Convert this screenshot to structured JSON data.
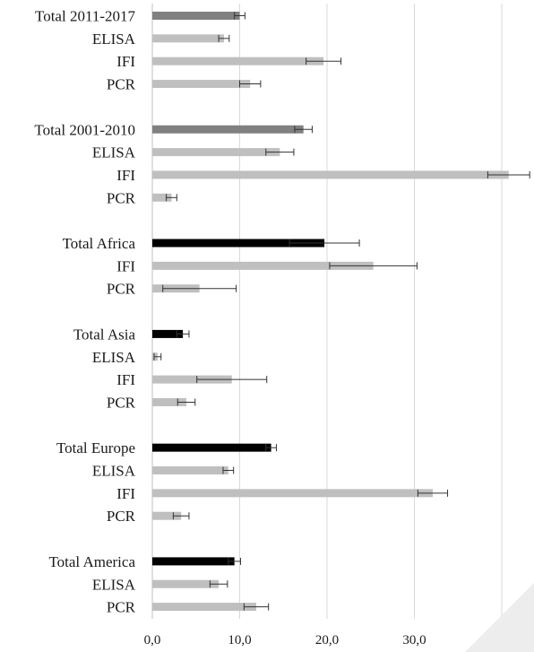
{
  "colors": {
    "period_total": "#808080",
    "region_total": "#000000",
    "method": "#bfbfbf",
    "error_bar": "#333333",
    "grid": "#d9d9d9"
  },
  "chart_data": {
    "type": "bar",
    "orientation": "horizontal",
    "xlim": [
      0,
      44
    ],
    "xticks": [
      "0,0",
      "10,0",
      "20,0",
      "30,0",
      "40,0"
    ],
    "grid": true,
    "legend": "none",
    "groups": [
      {
        "bars": [
          {
            "label": "Total 2011-2017",
            "value": 10.0,
            "error": 0.6,
            "style": "period_total"
          },
          {
            "label": "ELISA",
            "value": 8.2,
            "error": 0.6,
            "style": "method"
          },
          {
            "label": "IFI",
            "value": 19.6,
            "error": 2.0,
            "style": "method"
          },
          {
            "label": "PCR",
            "value": 11.2,
            "error": 1.2,
            "style": "method"
          }
        ]
      },
      {
        "bars": [
          {
            "label": "Total 2001-2010",
            "value": 17.3,
            "error": 1.0,
            "style": "period_total"
          },
          {
            "label": "ELISA",
            "value": 14.6,
            "error": 1.6,
            "style": "method"
          },
          {
            "label": "IFI",
            "value": 40.8,
            "error": 2.4,
            "style": "method"
          },
          {
            "label": "PCR",
            "value": 2.2,
            "error": 0.6,
            "style": "method"
          }
        ]
      },
      {
        "bars": [
          {
            "label": "Total Africa",
            "value": 19.7,
            "error": 4.0,
            "style": "region_total"
          },
          {
            "label": "IFI",
            "value": 25.3,
            "error": 5.0,
            "style": "method"
          },
          {
            "label": "PCR",
            "value": 5.4,
            "error": 4.2,
            "style": "method"
          }
        ]
      },
      {
        "bars": [
          {
            "label": "Total Asia",
            "value": 3.5,
            "error": 0.7,
            "style": "region_total"
          },
          {
            "label": "ELISA",
            "value": 0.6,
            "error": 0.4,
            "style": "method"
          },
          {
            "label": "IFI",
            "value": 9.1,
            "error": 4.0,
            "style": "method"
          },
          {
            "label": "PCR",
            "value": 3.9,
            "error": 1.0,
            "style": "method"
          }
        ]
      },
      {
        "bars": [
          {
            "label": "Total Europe",
            "value": 13.6,
            "error": 0.6,
            "style": "region_total"
          },
          {
            "label": "ELISA",
            "value": 8.7,
            "error": 0.6,
            "style": "method"
          },
          {
            "label": "IFI",
            "value": 32.1,
            "error": 1.7,
            "style": "method"
          },
          {
            "label": "PCR",
            "value": 3.3,
            "error": 0.9,
            "style": "method"
          }
        ]
      },
      {
        "bars": [
          {
            "label": "Total America",
            "value": 9.4,
            "error": 0.7,
            "style": "region_total"
          },
          {
            "label": "ELISA",
            "value": 7.6,
            "error": 1.0,
            "style": "method"
          },
          {
            "label": "PCR",
            "value": 11.9,
            "error": 1.4,
            "style": "method"
          }
        ]
      }
    ]
  }
}
